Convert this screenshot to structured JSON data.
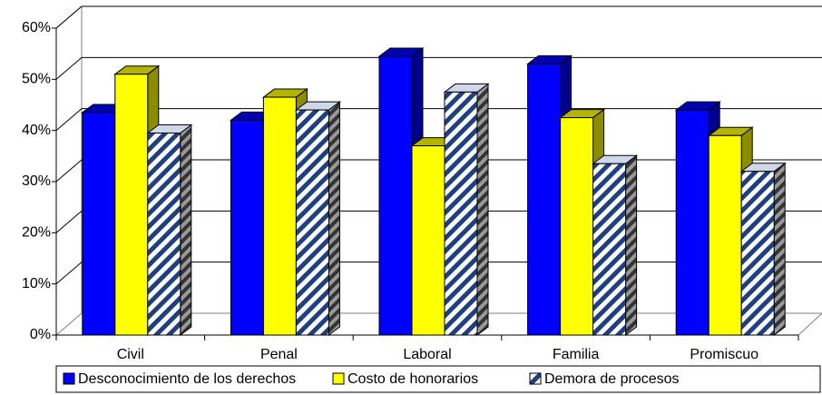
{
  "chart_data": {
    "type": "bar3d",
    "categories": [
      "Civil",
      "Penal",
      "Laboral",
      "Familia",
      "Promiscuo"
    ],
    "series": [
      {
        "name": "Desconocimiento de los derechos",
        "color": "#0000ff",
        "values": [
          43.5,
          42,
          54.5,
          53,
          44
        ]
      },
      {
        "name": "Costo de honorarios",
        "color": "#ffff00",
        "values": [
          51,
          46.5,
          37,
          42.5,
          39
        ]
      },
      {
        "name": "Demora de procesos",
        "color": "#1f3f7f",
        "pattern": "hatch",
        "values": [
          39.5,
          44,
          47.5,
          33.5,
          32
        ]
      }
    ],
    "ylim": [
      0,
      60
    ],
    "yticks": [
      {
        "value": 0,
        "label": "0%"
      },
      {
        "value": 10,
        "label": "10%"
      },
      {
        "value": 20,
        "label": "20%"
      },
      {
        "value": 30,
        "label": "30%"
      },
      {
        "value": 40,
        "label": "40%"
      },
      {
        "value": 50,
        "label": "50%"
      },
      {
        "value": 60,
        "label": "60%"
      }
    ],
    "grid": true,
    "legend": "bottom"
  }
}
